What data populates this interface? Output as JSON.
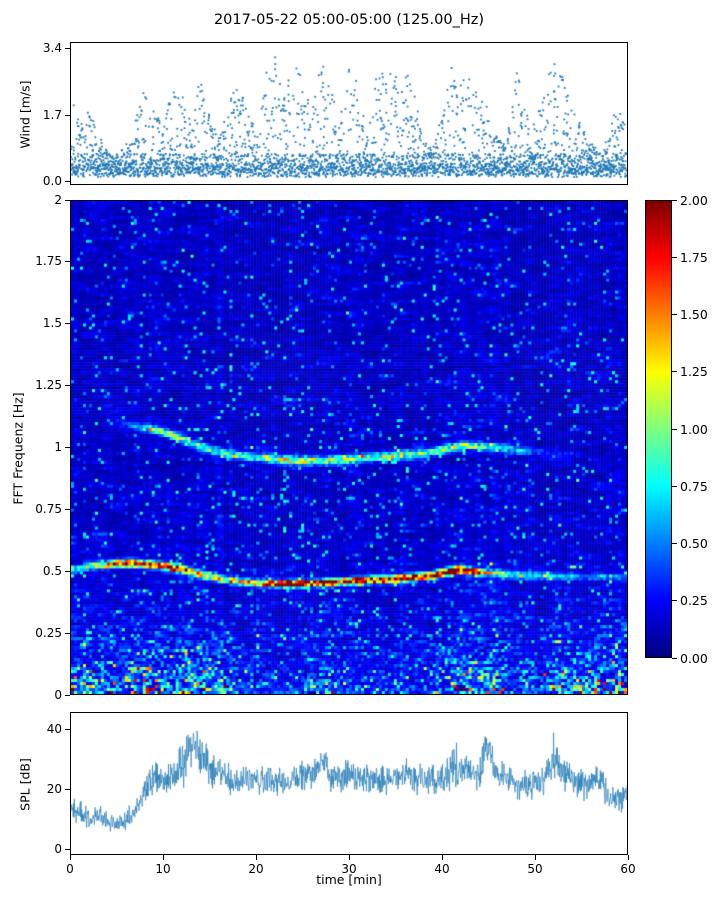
{
  "title": "2017-05-22 05:00-05:00 (125.00_Hz)",
  "colors": {
    "series": "#1f77b4",
    "axis": "#000000",
    "background": "#ffffff"
  },
  "chart_data": [
    {
      "type": "scatter",
      "name": "wind",
      "ylabel": "Wind [m/s]",
      "ylim": [
        -0.08,
        3.56
      ],
      "xlim": [
        0,
        60
      ],
      "yticks": {
        "values": [
          0.0,
          1.7,
          3.4
        ],
        "labels": [
          "0.0",
          "1.7",
          "3.4"
        ]
      },
      "marker_color": "#1f77b4",
      "baseline_band_mps": [
        0.15,
        0.7
      ],
      "max_envelope_mps_per_min": [
        2.2,
        1.4,
        2.0,
        1.2,
        0.7,
        0.7,
        1.0,
        1.6,
        2.5,
        1.8,
        1.4,
        2.6,
        2.2,
        1.5,
        2.8,
        1.6,
        1.1,
        2.0,
        2.6,
        1.8,
        1.3,
        2.9,
        3.3,
        2.2,
        3.2,
        2.6,
        1.8,
        3.1,
        2.4,
        1.5,
        3.3,
        2.5,
        1.2,
        2.7,
        3.2,
        2.7,
        3.0,
        2.3,
        1.1,
        0.8,
        1.8,
        3.1,
        2.5,
        3.2,
        1.9,
        2.4,
        1.1,
        0.9,
        2.9,
        2.2,
        1.5,
        2.1,
        3.2,
        2.7,
        2.0,
        1.6,
        1.1,
        0.9,
        1.1,
        2.1,
        1.4
      ]
    },
    {
      "type": "heatmap",
      "name": "spectrogram",
      "ylabel": "FFT Frequenz [Hz]",
      "ylim": [
        0,
        2
      ],
      "xlim": [
        0,
        60
      ],
      "yticks": {
        "values": [
          2,
          1.75,
          1.5,
          1.25,
          1,
          0.75,
          0.5,
          0.25,
          0
        ],
        "labels": [
          "2",
          "1.75",
          "1.5",
          "1.25",
          "1",
          "0.75",
          "0.5",
          "0.25",
          "0"
        ]
      },
      "colormap": "jet",
      "clim": [
        0,
        2
      ],
      "colorbar": {
        "values": [
          2.0,
          1.75,
          1.5,
          1.25,
          1.0,
          0.75,
          0.5,
          0.25,
          0.0
        ],
        "labels": [
          "2.00",
          "1.75",
          "1.50",
          "1.25",
          "1.00",
          "0.75",
          "0.50",
          "0.25",
          "0.00"
        ]
      },
      "background_level": 0.12,
      "ridge_fundamental": {
        "width_hz": 0.01,
        "freq_hz_per_min": [
          0.5,
          0.51,
          0.52,
          0.522,
          0.524,
          0.528,
          0.53,
          0.528,
          0.525,
          0.522,
          0.52,
          0.512,
          0.505,
          0.495,
          0.485,
          0.475,
          0.468,
          0.462,
          0.457,
          0.452,
          0.45,
          0.448,
          0.446,
          0.445,
          0.445,
          0.446,
          0.448,
          0.45,
          0.452,
          0.455,
          0.457,
          0.459,
          0.461,
          0.463,
          0.465,
          0.467,
          0.469,
          0.472,
          0.476,
          0.481,
          0.49,
          0.498,
          0.503,
          0.5,
          0.495,
          0.491,
          0.488,
          0.486,
          0.484,
          0.482,
          0.481,
          0.479,
          0.478,
          0.477,
          0.476,
          0.475,
          0.474,
          0.473,
          0.472,
          0.471,
          0.47
        ],
        "amp_per_min": [
          0.5,
          0.6,
          0.9,
          1.1,
          1.4,
          1.8,
          2.0,
          1.9,
          1.7,
          2.0,
          1.9,
          2.1,
          1.8,
          1.5,
          1.3,
          1.2,
          1.1,
          1.1,
          1.2,
          1.1,
          1.3,
          1.5,
          1.7,
          1.9,
          2.1,
          2.0,
          1.9,
          2.1,
          2.0,
          1.9,
          1.8,
          1.9,
          2.0,
          1.9,
          1.8,
          1.9,
          2.0,
          1.9,
          1.8,
          1.9,
          2.1,
          2.2,
          2.1,
          1.7,
          1.3,
          1.0,
          0.9,
          0.8,
          0.7,
          0.65,
          0.6,
          0.55,
          0.5,
          0.45,
          0.4,
          0.38,
          0.35,
          0.33,
          0.3,
          0.3,
          0.3
        ]
      },
      "ridge_harmonic": {
        "width_hz": 0.012,
        "freq_hz_per_min": [
          1.1,
          1.1,
          1.1,
          1.1,
          1.098,
          1.095,
          1.09,
          1.085,
          1.08,
          1.072,
          1.062,
          1.05,
          1.035,
          1.018,
          1.002,
          0.99,
          0.982,
          0.975,
          0.97,
          0.965,
          0.96,
          0.956,
          0.952,
          0.949,
          0.947,
          0.945,
          0.945,
          0.946,
          0.948,
          0.95,
          0.952,
          0.955,
          0.958,
          0.96,
          0.963,
          0.966,
          0.969,
          0.972,
          0.976,
          0.982,
          0.99,
          0.998,
          1.005,
          1.008,
          1.005,
          1.002,
          0.998,
          0.995,
          0.99,
          0.986,
          0.982,
          0.978,
          0.974,
          0.97,
          0.967,
          0.963,
          0.96,
          0.957,
          0.954,
          0.951,
          0.95
        ],
        "amp_per_min": [
          0,
          0,
          0,
          0,
          0.08,
          0.17,
          0.26,
          0.42,
          0.6,
          0.76,
          0.85,
          0.93,
          0.85,
          0.76,
          0.85,
          0.76,
          0.68,
          0.68,
          0.76,
          0.68,
          0.76,
          0.85,
          0.93,
          0.95,
          0.95,
          0.93,
          0.95,
          0.95,
          0.93,
          0.85,
          0.93,
          0.85,
          0.93,
          0.85,
          0.93,
          0.95,
          0.93,
          0.85,
          0.93,
          0.85,
          0.93,
          0.95,
          0.93,
          0.85,
          0.76,
          0.68,
          0.6,
          0.5,
          0.42,
          0.34,
          0.26,
          0.2,
          0.17,
          0.14,
          0.08,
          0,
          0,
          0,
          0,
          0,
          0
        ]
      },
      "low_freq_burst_amp_per_min": [
        1.5,
        1.5,
        1.6,
        1.4,
        1.3,
        1.5,
        1.6,
        1.7,
        1.8,
        1.9,
        1.8,
        1.9,
        2.0,
        1.9,
        1.8,
        1.7,
        1.5,
        1.2,
        0.7,
        0.6,
        0.6,
        0.5,
        0.6,
        0.6,
        0.5,
        0.6,
        0.9,
        0.9,
        0.8,
        0.6,
        0.5,
        0.5,
        0.5,
        0.5,
        0.4,
        0.5,
        0.5,
        0.4,
        0.4,
        0.5,
        1.0,
        1.6,
        1.8,
        1.7,
        1.6,
        1.8,
        1.5,
        1.0,
        0.8,
        0.7,
        0.6,
        0.8,
        1.5,
        1.6,
        1.4,
        1.2,
        1.3,
        1.5,
        1.6,
        1.7,
        1.6
      ]
    },
    {
      "type": "line",
      "name": "spl",
      "ylabel": "SPL [dB]",
      "xlabel": "time [min]",
      "ylim": [
        -2,
        46
      ],
      "xlim": [
        0,
        60
      ],
      "yticks": {
        "values": [
          0,
          20,
          40
        ],
        "labels": [
          "0",
          "20",
          "40"
        ]
      },
      "xticks": {
        "values": [
          0,
          10,
          20,
          30,
          40,
          50,
          60
        ],
        "labels": [
          "0",
          "10",
          "20",
          "30",
          "40",
          "50",
          "60"
        ]
      },
      "line_color": "#1f77b4",
      "noise_db": 3.5,
      "values_db_per_min": [
        13,
        12,
        10,
        11,
        9,
        8,
        10,
        12,
        20,
        24,
        23,
        24,
        28,
        36,
        32,
        27,
        25,
        24,
        23,
        23,
        24,
        23,
        23,
        22,
        23,
        24,
        24,
        30,
        25,
        24,
        25,
        24,
        23,
        24,
        23,
        24,
        25,
        24,
        23,
        23,
        24,
        28,
        28,
        26,
        24,
        35,
        25,
        23,
        22,
        22,
        21,
        23,
        33,
        26,
        24,
        22,
        20,
        25,
        17,
        16,
        18
      ]
    }
  ]
}
